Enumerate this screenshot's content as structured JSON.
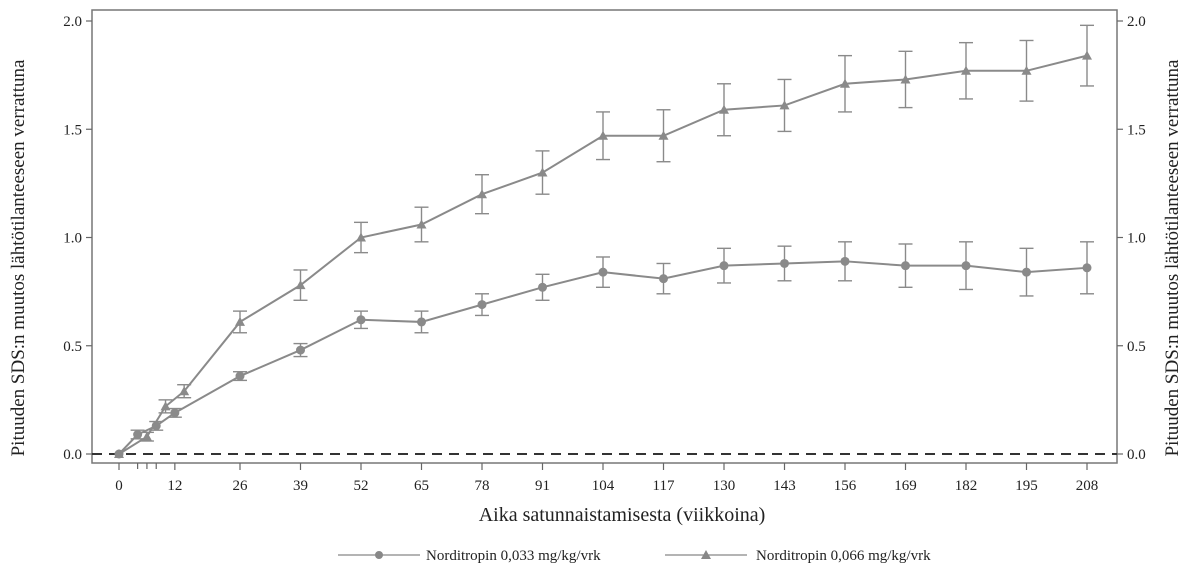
{
  "chart_data": {
    "type": "line",
    "xlabel": "Aika satunnaistamisesta (viikkoina)",
    "ylabel_left": "Pituuden SDS:n muutos lähtötilanteeseen verrattuna",
    "ylabel_right": "Pituuden SDS:n muutos lähtötilanteeseen verrattuna",
    "ylim": [
      0,
      2.0
    ],
    "xlim": [
      -4,
      213
    ],
    "y_ticks": [
      "0.0",
      "0.5",
      "1.0",
      "1.5",
      "2.0"
    ],
    "x_ticks": [
      "0",
      "12",
      "26",
      "39",
      "52",
      "65",
      "78",
      "91",
      "104",
      "117",
      "130",
      "143",
      "156",
      "169",
      "182",
      "195",
      "208"
    ],
    "grid": false,
    "legend_position": "bottom",
    "reference_line": {
      "y": 0.0,
      "style": "dashed"
    },
    "series": [
      {
        "name": "Norditropin 0,033 mg/kg/vrk",
        "marker": "circle",
        "color": "#8a8a8a",
        "x": [
          0,
          4,
          8,
          12,
          26,
          39,
          52,
          65,
          78,
          91,
          104,
          117,
          130,
          143,
          156,
          169,
          182,
          195,
          208
        ],
        "y": [
          0.0,
          0.09,
          0.13,
          0.19,
          0.36,
          0.48,
          0.62,
          0.61,
          0.69,
          0.77,
          0.84,
          0.81,
          0.87,
          0.88,
          0.89,
          0.87,
          0.87,
          0.84,
          0.86
        ],
        "err": [
          0.0,
          0.02,
          0.02,
          0.02,
          0.02,
          0.03,
          0.04,
          0.05,
          0.05,
          0.06,
          0.07,
          0.07,
          0.08,
          0.08,
          0.09,
          0.1,
          0.11,
          0.11,
          0.12
        ]
      },
      {
        "name": "Norditropin 0,066 mg/kg/vrk",
        "marker": "triangle",
        "color": "#8a8a8a",
        "x": [
          0,
          6,
          10,
          14,
          26,
          39,
          52,
          65,
          78,
          91,
          104,
          117,
          130,
          143,
          156,
          169,
          182,
          195,
          208
        ],
        "y": [
          0.0,
          0.08,
          0.22,
          0.29,
          0.61,
          0.78,
          1.0,
          1.06,
          1.2,
          1.3,
          1.47,
          1.47,
          1.59,
          1.61,
          1.71,
          1.73,
          1.77,
          1.77,
          1.84
        ],
        "err": [
          0.0,
          0.02,
          0.03,
          0.03,
          0.05,
          0.07,
          0.07,
          0.08,
          0.09,
          0.1,
          0.11,
          0.12,
          0.12,
          0.12,
          0.13,
          0.13,
          0.13,
          0.14,
          0.14
        ]
      }
    ]
  }
}
